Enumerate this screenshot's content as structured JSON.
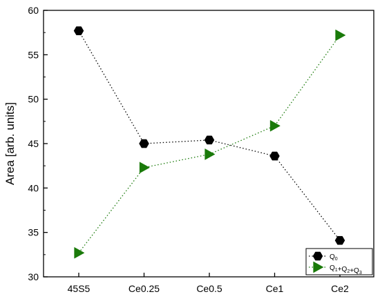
{
  "chart_data": {
    "type": "line",
    "xlabel": "",
    "ylabel": "Area [arb. units]",
    "ylim": [
      30,
      60
    ],
    "yticks": [
      30,
      35,
      40,
      45,
      50,
      55,
      60
    ],
    "categories": [
      "45S5",
      "Ce0.25",
      "Ce0.5",
      "Ce1",
      "Ce2"
    ],
    "grid": false,
    "legend_position": "bottom-right",
    "series": [
      {
        "name": "Q0",
        "legend_parts": [
          {
            "t": "Q",
            "sub": "0"
          }
        ],
        "marker": "hexagon",
        "color": "#000000",
        "line_style": "dotted",
        "values": [
          57.7,
          45.0,
          45.4,
          43.6,
          34.1
        ]
      },
      {
        "name": "Q1+Q2+Q3",
        "legend_parts": [
          {
            "t": "Q",
            "sub": "1"
          },
          {
            "t": "+Q",
            "sub": "2"
          },
          {
            "t": "+Q",
            "sub": "3"
          }
        ],
        "marker": "triangle-right",
        "color": "#1a7a0a",
        "line_style": "dotted",
        "values": [
          32.7,
          42.3,
          43.8,
          47.0,
          57.2
        ]
      }
    ]
  }
}
